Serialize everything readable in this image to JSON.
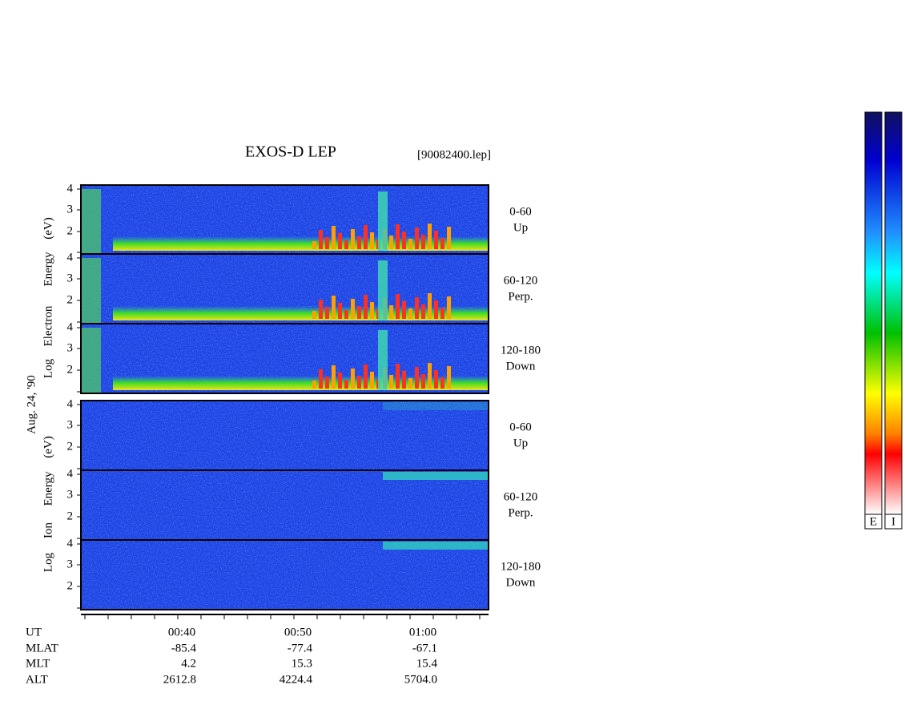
{
  "header": {
    "title": "EXOS-D LEP",
    "file": "[90082400.lep]"
  },
  "date": "Aug. 24, '90",
  "electron": {
    "axis_words": [
      "Log",
      "Electron",
      "Energy",
      "(eV)"
    ],
    "panels": [
      {
        "ticks": [
          "4",
          "3",
          "2"
        ],
        "angle": "0-60",
        "direction": "Up"
      },
      {
        "ticks": [
          "4",
          "3",
          "2"
        ],
        "angle": "60-120",
        "direction": "Perp."
      },
      {
        "ticks": [
          "4",
          "3",
          "2"
        ],
        "angle": "120-180",
        "direction": "Down"
      }
    ]
  },
  "ion": {
    "axis_words": [
      "Log",
      "Ion",
      "Energy",
      "(eV)"
    ],
    "panels": [
      {
        "ticks": [
          "4",
          "3",
          "2"
        ],
        "angle": "0-60",
        "direction": "Up"
      },
      {
        "ticks": [
          "4",
          "3",
          "2"
        ],
        "angle": "60-120",
        "direction": "Perp."
      },
      {
        "ticks": [
          "4",
          "3",
          "2"
        ],
        "angle": "120-180",
        "direction": "Down"
      }
    ]
  },
  "footer": {
    "rows": [
      {
        "name": "UT",
        "values": [
          "00:40",
          "00:50",
          "01:00"
        ]
      },
      {
        "name": "MLAT",
        "values": [
          "-85.4",
          "-77.4",
          "-67.1"
        ]
      },
      {
        "name": "MLT",
        "values": [
          "4.2",
          "15.3",
          "15.4"
        ]
      },
      {
        "name": "ALT",
        "values": [
          "2612.8",
          "4224.4",
          "5704.0"
        ]
      }
    ]
  },
  "colorbars": [
    "E",
    "I"
  ]
}
